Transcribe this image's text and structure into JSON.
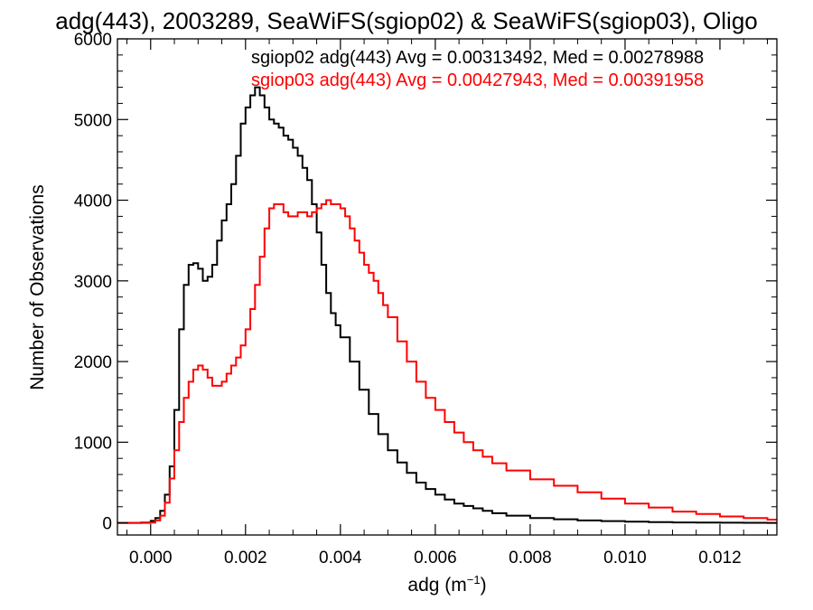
{
  "chart_data": {
    "type": "line",
    "title": "adg(443), 2003289, SeaWiFS(sgiop02) & SeaWiFS(sgiop03), Oligo",
    "xlabel": "adg (m",
    "xlabel_exponent": "−1",
    "xlabel_close": ")",
    "ylabel": "Number of Observations",
    "xlim": [
      -0.0007,
      0.0132
    ],
    "ylim": [
      -150,
      6000
    ],
    "x_ticks": [
      0.0,
      0.002,
      0.004,
      0.006,
      0.008,
      0.01,
      0.012
    ],
    "x_tick_labels": [
      "0.000",
      "0.002",
      "0.004",
      "0.006",
      "0.008",
      "0.010",
      "0.012"
    ],
    "y_ticks": [
      0,
      1000,
      2000,
      3000,
      4000,
      5000,
      6000
    ],
    "y_tick_labels": [
      "0",
      "1000",
      "2000",
      "3000",
      "4000",
      "5000",
      "6000"
    ],
    "grid": false,
    "legend_position": "top-right",
    "series": [
      {
        "name": "sgiop02",
        "legend": "sgiop02 adg(443) Avg = 0.00313492, Med = 0.00278988",
        "color": "#000000",
        "x": [
          -0.0007,
          -0.0004,
          -0.0002,
          0.0,
          0.0001,
          0.0002,
          0.0003,
          0.0004,
          0.0005,
          0.0006,
          0.0007,
          0.0008,
          0.0009,
          0.001,
          0.0011,
          0.0012,
          0.0013,
          0.0014,
          0.0015,
          0.0016,
          0.0017,
          0.0018,
          0.0019,
          0.002,
          0.0021,
          0.0022,
          0.0023,
          0.0024,
          0.0025,
          0.0026,
          0.0027,
          0.0028,
          0.0029,
          0.003,
          0.0031,
          0.0032,
          0.0033,
          0.0034,
          0.0035,
          0.0036,
          0.0037,
          0.0038,
          0.0039,
          0.004,
          0.0042,
          0.0044,
          0.0046,
          0.0048,
          0.005,
          0.0052,
          0.0054,
          0.0056,
          0.0058,
          0.006,
          0.0062,
          0.0064,
          0.0066,
          0.0068,
          0.007,
          0.0072,
          0.0075,
          0.008,
          0.0085,
          0.009,
          0.0095,
          0.01,
          0.0105,
          0.011,
          0.0115,
          0.012,
          0.0125,
          0.013,
          0.0132
        ],
        "values": [
          0,
          0,
          5,
          25,
          60,
          150,
          350,
          700,
          1400,
          2400,
          2950,
          3200,
          3220,
          3150,
          3000,
          3050,
          3200,
          3500,
          3750,
          3950,
          4200,
          4550,
          4950,
          5150,
          5300,
          5400,
          5300,
          5150,
          5000,
          4950,
          4900,
          4800,
          4750,
          4650,
          4550,
          4400,
          4250,
          3950,
          3600,
          3200,
          2850,
          2600,
          2450,
          2300,
          2000,
          1650,
          1350,
          1100,
          900,
          750,
          620,
          500,
          420,
          350,
          290,
          240,
          210,
          180,
          150,
          120,
          90,
          60,
          45,
          30,
          22,
          15,
          10,
          6,
          4,
          2,
          1,
          0,
          0
        ]
      },
      {
        "name": "sgiop03",
        "legend": "sgiop03 adg(443) Avg = 0.00427943, Med = 0.00391958",
        "color": "#ff0000",
        "x": [
          -0.0007,
          -0.0003,
          0.0,
          0.0001,
          0.0002,
          0.0003,
          0.0004,
          0.0005,
          0.0006,
          0.0007,
          0.0008,
          0.0009,
          0.001,
          0.0011,
          0.0012,
          0.0013,
          0.0014,
          0.0015,
          0.0016,
          0.0017,
          0.0018,
          0.0019,
          0.002,
          0.0021,
          0.0022,
          0.0023,
          0.0024,
          0.0025,
          0.0026,
          0.0027,
          0.0028,
          0.0029,
          0.003,
          0.0031,
          0.0032,
          0.0033,
          0.0034,
          0.0035,
          0.0036,
          0.0037,
          0.0038,
          0.0039,
          0.004,
          0.0041,
          0.0042,
          0.0043,
          0.0044,
          0.0045,
          0.0046,
          0.0047,
          0.0048,
          0.0049,
          0.005,
          0.0052,
          0.0054,
          0.0056,
          0.0058,
          0.006,
          0.0062,
          0.0064,
          0.0066,
          0.0068,
          0.007,
          0.0072,
          0.0075,
          0.008,
          0.0085,
          0.009,
          0.0095,
          0.01,
          0.0105,
          0.011,
          0.0115,
          0.012,
          0.0125,
          0.013,
          0.0132
        ],
        "values": [
          0,
          0,
          5,
          30,
          90,
          250,
          550,
          900,
          1250,
          1550,
          1750,
          1900,
          1950,
          1900,
          1800,
          1700,
          1700,
          1750,
          1850,
          1950,
          2050,
          2200,
          2400,
          2650,
          2950,
          3300,
          3650,
          3900,
          3950,
          3950,
          3850,
          3800,
          3800,
          3850,
          3850,
          3800,
          3850,
          3900,
          3950,
          4000,
          3950,
          3950,
          3900,
          3800,
          3650,
          3500,
          3350,
          3200,
          3100,
          3000,
          2850,
          2700,
          2550,
          2250,
          2000,
          1750,
          1550,
          1400,
          1250,
          1120,
          1000,
          900,
          820,
          740,
          650,
          540,
          460,
          380,
          300,
          240,
          190,
          140,
          110,
          80,
          60,
          40,
          35
        ]
      }
    ]
  }
}
